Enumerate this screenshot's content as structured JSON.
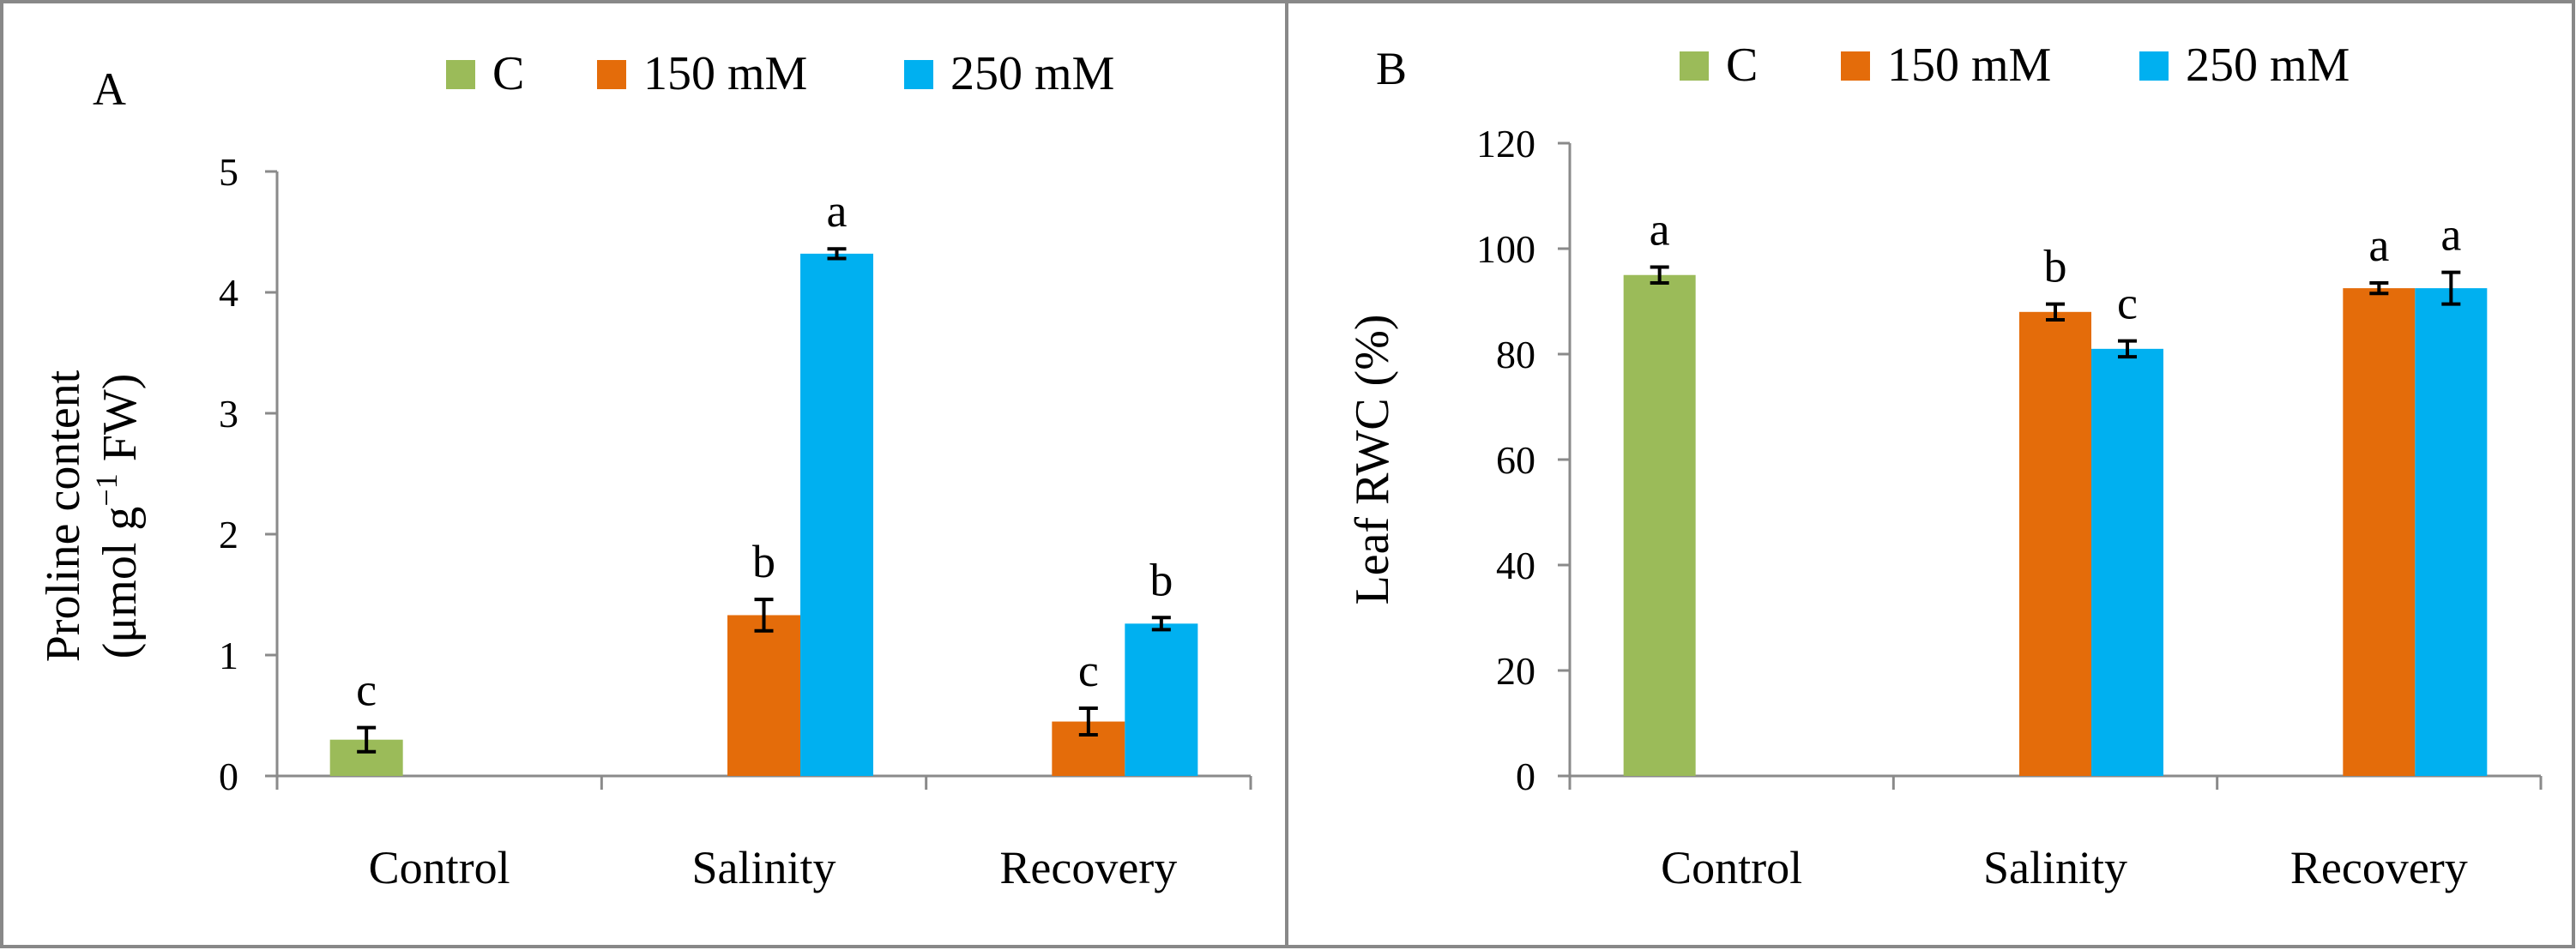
{
  "series_colors": {
    "C": "#9bbb59",
    "150 mM": "#e46c0a",
    "250 mM": "#00b0f0"
  },
  "legend": [
    "C",
    "150 mM",
    "250 mM"
  ],
  "chart_data": [
    {
      "type": "bar",
      "panel_label": "A",
      "title": "",
      "xlabel": "",
      "ylabel_line1": "Proline content",
      "ylabel_line2_prefix": "(μmol g",
      "ylabel_line2_sup": "−1",
      "ylabel_line2_suffix": " FW)",
      "ylim": [
        0,
        5
      ],
      "yticks": [
        0,
        1,
        2,
        3,
        4,
        5
      ],
      "grid": false,
      "legend_position": "top",
      "categories": [
        "Control",
        "Salinity",
        "Recovery"
      ],
      "series": [
        {
          "name": "C",
          "values": [
            0.3,
            null,
            null
          ],
          "errors": [
            0.1,
            null,
            null
          ],
          "labels": [
            "c",
            null,
            null
          ]
        },
        {
          "name": "150 mM",
          "values": [
            null,
            1.33,
            0.45
          ],
          "errors": [
            null,
            0.13,
            0.11
          ],
          "labels": [
            null,
            "b",
            "c"
          ]
        },
        {
          "name": "250 mM",
          "values": [
            null,
            4.32,
            1.26
          ],
          "errors": [
            null,
            0.04,
            0.05
          ],
          "labels": [
            null,
            "a",
            "b"
          ]
        }
      ]
    },
    {
      "type": "bar",
      "panel_label": "B",
      "title": "",
      "xlabel": "",
      "ylabel": "Leaf RWC (%)",
      "ylim": [
        0,
        120
      ],
      "yticks": [
        0,
        20,
        40,
        60,
        80,
        100,
        120
      ],
      "grid": false,
      "legend_position": "top",
      "categories": [
        "Control",
        "Salinity",
        "Recovery"
      ],
      "series": [
        {
          "name": "C",
          "values": [
            95,
            null,
            null
          ],
          "errors": [
            1.5,
            null,
            null
          ],
          "labels": [
            "a",
            null,
            null
          ]
        },
        {
          "name": "150 mM",
          "values": [
            null,
            88,
            92.5
          ],
          "errors": [
            null,
            1.5,
            1.0
          ],
          "labels": [
            null,
            "b",
            "a"
          ]
        },
        {
          "name": "250 mM",
          "values": [
            null,
            81,
            92.5
          ],
          "errors": [
            null,
            1.5,
            3.0
          ],
          "labels": [
            null,
            "c",
            "a"
          ]
        }
      ]
    }
  ]
}
